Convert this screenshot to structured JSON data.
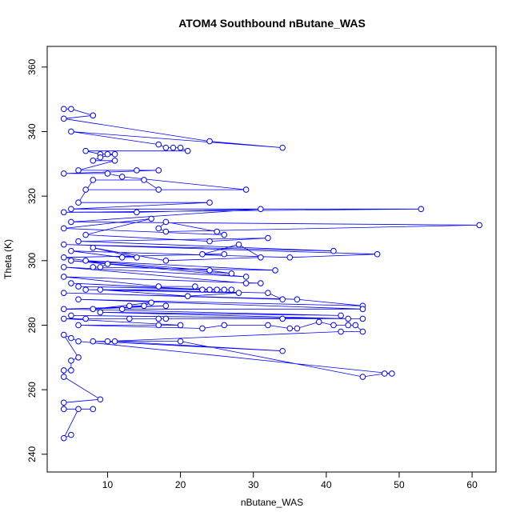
{
  "chart_data": {
    "type": "line",
    "markers": true,
    "title": "ATOM4 Southbound nButane_WAS",
    "x_label": "nButane_WAS",
    "y_label": "Theta (K)",
    "xlim": [
      1.72,
      63.28
    ],
    "ylim": [
      234.5,
      366.4
    ],
    "xticks": [
      10,
      20,
      30,
      40,
      50,
      60
    ],
    "yticks": [
      240,
      260,
      280,
      300,
      320,
      340,
      360
    ],
    "color": "#0000ff",
    "x": [
      4,
      5,
      8,
      4,
      24,
      34,
      5,
      17,
      18,
      19,
      20,
      21,
      7,
      9,
      10,
      11,
      9,
      8,
      11,
      6,
      14,
      17,
      4,
      10,
      12,
      29,
      7,
      17,
      15,
      8,
      6,
      24,
      5,
      53,
      4,
      14,
      31,
      5,
      61,
      18,
      17,
      18,
      25,
      26,
      4,
      16,
      7,
      24,
      32,
      6,
      41,
      4,
      47,
      35,
      5,
      12,
      14,
      8,
      18,
      31,
      28,
      23,
      26,
      4,
      10,
      9,
      8,
      33,
      7,
      24,
      27,
      5,
      29,
      4,
      29,
      31,
      4,
      17,
      22,
      23,
      5,
      24,
      25,
      26,
      6,
      27,
      7,
      28,
      21,
      9,
      32,
      34,
      4,
      36,
      45,
      6,
      45,
      12,
      13,
      15,
      16,
      8,
      18,
      4,
      42,
      9,
      43,
      5,
      45,
      34,
      7,
      17,
      18,
      13,
      4,
      20,
      17,
      6,
      23,
      26,
      32,
      35,
      36,
      39,
      41,
      43,
      44,
      45,
      42,
      10,
      11,
      34,
      8,
      20,
      45,
      48,
      49,
      6,
      5,
      4,
      6,
      5,
      5,
      4,
      4,
      9,
      4,
      4,
      8,
      6,
      4,
      5
    ],
    "values": [
      347,
      347,
      345,
      344,
      337,
      335,
      340,
      336,
      335,
      335,
      335,
      334,
      334,
      333,
      333,
      333,
      332,
      331,
      331,
      328,
      328,
      328,
      327,
      327,
      326,
      322,
      322,
      322,
      325,
      325,
      318,
      318,
      316,
      316,
      315,
      315,
      316,
      312,
      311,
      309,
      310,
      312,
      309,
      308,
      310,
      313,
      308,
      306,
      307,
      306,
      303,
      305,
      302,
      301,
      303,
      301,
      301,
      304,
      300,
      301,
      305,
      302,
      302,
      301,
      299,
      298,
      298,
      297,
      300,
      297,
      296,
      300,
      295,
      298,
      293,
      293,
      295,
      292,
      292,
      291,
      293,
      291,
      291,
      291,
      292,
      291,
      291,
      290,
      289,
      291,
      290,
      288,
      290,
      288,
      286,
      288,
      285,
      285,
      286,
      286,
      287,
      285,
      286,
      285,
      283,
      284,
      282,
      283,
      282,
      282,
      282,
      282,
      282,
      282,
      282,
      280,
      280,
      280,
      279,
      280,
      280,
      279,
      279,
      281,
      280,
      280,
      280,
      278,
      278,
      275,
      275,
      272,
      275,
      275,
      264,
      265,
      265,
      275,
      276,
      277,
      270,
      269,
      266,
      266,
      264,
      257,
      256,
      254,
      254,
      254,
      245,
      246
    ]
  }
}
